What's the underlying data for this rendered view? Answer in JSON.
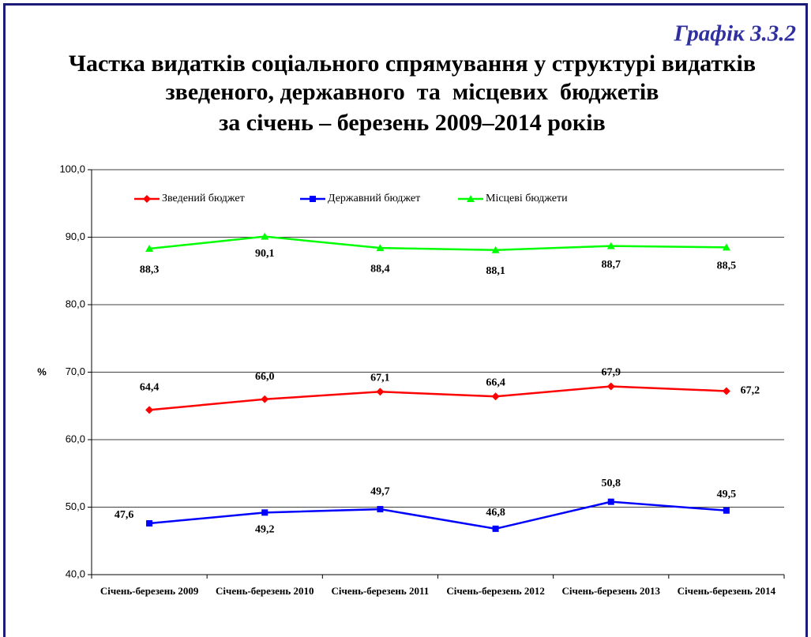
{
  "chart_data": {
    "type": "line",
    "label": "Графік 3.3.2",
    "title": [
      "Частка видатків соціального спрямування у структурі видатків",
      "зведеного, державного  та  місцевих  бюджетів",
      "за січень – березень 2009–2014 років"
    ],
    "y_label": "%",
    "categories": [
      "Січень-березень 2009",
      "Січень-березень 2010",
      "Січень-березень 2011",
      "Січень-березень 2012",
      "Січень-березень 2013",
      "Січень-березень 2014"
    ],
    "series": [
      {
        "name": "Зведений бюджет",
        "color": "#ff0000",
        "marker": "diamond",
        "values": [
          64.4,
          66.0,
          67.1,
          66.4,
          67.9,
          67.2
        ],
        "value_labels": [
          "64,4",
          "66,0",
          "67,1",
          "66,4",
          "67,9",
          "67,2"
        ]
      },
      {
        "name": "Державний бюджет",
        "color": "#0000ff",
        "marker": "square",
        "values": [
          47.6,
          49.2,
          49.7,
          46.8,
          50.8,
          49.5
        ],
        "value_labels": [
          "47,6",
          "49,2",
          "49,7",
          "46,8",
          "50,8",
          "49,5"
        ]
      },
      {
        "name": "Місцеві бюджети",
        "color": "#00ff00",
        "marker": "triangle",
        "values": [
          88.3,
          90.1,
          88.4,
          88.1,
          88.7,
          88.5
        ],
        "value_labels": [
          "88,3",
          "90,1",
          "88,4",
          "88,1",
          "88,7",
          "88,5"
        ]
      }
    ],
    "ylim": [
      40,
      100
    ],
    "yticks": [
      {
        "value": 40,
        "label": "40,0"
      },
      {
        "value": 50,
        "label": "50,0"
      },
      {
        "value": 60,
        "label": "60,0"
      },
      {
        "value": 70,
        "label": "70,0"
      },
      {
        "value": 80,
        "label": "80,0"
      },
      {
        "value": 90,
        "label": "90,0"
      },
      {
        "value": 100,
        "label": "100,0"
      }
    ],
    "grid": true,
    "legend": "top"
  }
}
